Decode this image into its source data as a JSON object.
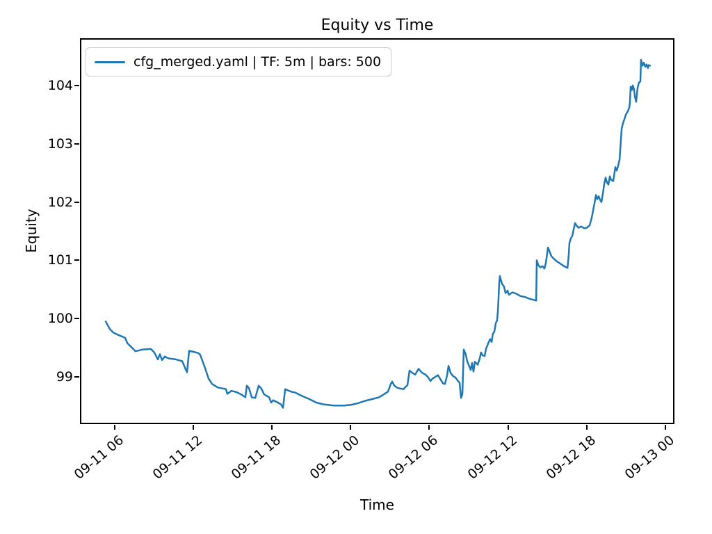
{
  "chart_data": {
    "type": "line",
    "title": "Equity vs Time",
    "xlabel": "Time",
    "ylabel": "Equity",
    "legend": [
      "cfg_merged.yaml | TF: 5m | bars: 500"
    ],
    "legend_position": "upper left",
    "line_color": "#1f77b4",
    "grid": false,
    "x_units": "hours since 09-11 00:00",
    "xlim": [
      3.35,
      48.7
    ],
    "ylim": [
      98.19,
      104.81
    ],
    "x_ticks": [
      {
        "pos": 6,
        "label": "09-11 06"
      },
      {
        "pos": 12,
        "label": "09-11 12"
      },
      {
        "pos": 18,
        "label": "09-11 18"
      },
      {
        "pos": 24,
        "label": "09-12 00"
      },
      {
        "pos": 30,
        "label": "09-12 06"
      },
      {
        "pos": 36,
        "label": "09-12 12"
      },
      {
        "pos": 42,
        "label": "09-12 18"
      },
      {
        "pos": 48,
        "label": "09-13 00"
      }
    ],
    "y_ticks": [
      99,
      100,
      101,
      102,
      103,
      104
    ],
    "x": [
      5.31,
      5.63,
      5.9,
      6.27,
      6.8,
      6.96,
      7.33,
      7.59,
      8.12,
      8.76,
      9.02,
      9.29,
      9.45,
      9.61,
      9.82,
      10.08,
      10.67,
      11.15,
      11.41,
      11.52,
      11.68,
      12.0,
      12.37,
      12.52,
      12.9,
      13.16,
      13.43,
      13.85,
      14.49,
      14.59,
      14.91,
      15.28,
      15.65,
      15.97,
      16.08,
      16.24,
      16.45,
      16.72,
      16.98,
      17.19,
      17.4,
      17.78,
      17.94,
      18.09,
      18.36,
      18.68,
      18.84,
      19.0,
      19.21,
      19.42,
      19.79,
      20.22,
      20.85,
      21.38,
      21.91,
      22.71,
      23.5,
      24.03,
      24.57,
      25.1,
      25.63,
      26.16,
      26.53,
      26.85,
      27.06,
      27.17,
      27.33,
      27.59,
      28.02,
      28.33,
      28.49,
      28.7,
      28.92,
      29.18,
      29.45,
      29.71,
      29.92,
      30.08,
      30.24,
      30.51,
      30.66,
      30.82,
      31.04,
      31.19,
      31.35,
      31.46,
      31.62,
      31.78,
      31.99,
      32.15,
      32.31,
      32.42,
      32.52,
      32.63,
      32.79,
      32.89,
      33.05,
      33.16,
      33.26,
      33.37,
      33.47,
      33.69,
      33.85,
      33.95,
      34.06,
      34.22,
      34.32,
      34.48,
      34.64,
      34.75,
      34.85,
      34.96,
      35.07,
      35.17,
      35.23,
      35.28,
      35.33,
      35.38,
      35.54,
      35.7,
      35.81,
      35.97,
      36.07,
      36.34,
      36.61,
      36.92,
      37.3,
      37.67,
      37.99,
      38.15,
      38.2,
      38.31,
      38.47,
      38.63,
      38.78,
      38.89,
      39.05,
      39.16,
      39.31,
      39.53,
      39.74,
      40.01,
      40.27,
      40.54,
      40.64,
      40.69,
      40.8,
      40.91,
      41.01,
      41.12,
      41.22,
      41.38,
      41.59,
      41.81,
      42.02,
      42.23,
      42.39,
      42.5,
      42.6,
      42.71,
      42.81,
      42.92,
      43.02,
      43.13,
      43.24,
      43.34,
      43.45,
      43.56,
      43.66,
      43.77,
      43.87,
      44.03,
      44.19,
      44.3,
      44.4,
      44.51,
      44.61,
      44.67,
      44.77,
      44.88,
      44.99,
      45.15,
      45.25,
      45.3,
      45.36,
      45.46,
      45.52,
      45.62,
      45.67,
      45.78,
      45.89,
      45.99,
      46.1,
      46.15,
      46.26,
      46.36,
      46.47,
      46.57,
      46.68,
      46.73,
      46.84
    ],
    "y": [
      99.95,
      99.82,
      99.76,
      99.72,
      99.67,
      99.58,
      99.5,
      99.44,
      99.47,
      99.48,
      99.42,
      99.3,
      99.39,
      99.29,
      99.35,
      99.32,
      99.3,
      99.27,
      99.13,
      99.08,
      99.45,
      99.43,
      99.41,
      99.38,
      99.15,
      98.97,
      98.88,
      98.82,
      98.79,
      98.71,
      98.76,
      98.74,
      98.7,
      98.65,
      98.85,
      98.81,
      98.65,
      98.64,
      98.85,
      98.8,
      98.7,
      98.65,
      98.56,
      98.6,
      98.57,
      98.53,
      98.47,
      98.79,
      98.77,
      98.75,
      98.73,
      98.68,
      98.62,
      98.56,
      98.53,
      98.51,
      98.51,
      98.52,
      98.55,
      98.59,
      98.62,
      98.65,
      98.7,
      98.75,
      98.88,
      98.92,
      98.85,
      98.81,
      98.79,
      98.86,
      99.11,
      99.07,
      99.04,
      99.14,
      99.07,
      99.04,
      98.99,
      98.93,
      98.97,
      99.01,
      99.03,
      98.97,
      98.89,
      98.88,
      99.02,
      99.19,
      99.07,
      99.02,
      98.99,
      98.94,
      98.9,
      98.64,
      98.7,
      99.47,
      99.38,
      99.27,
      99.18,
      99.12,
      99.24,
      99.09,
      99.26,
      99.21,
      99.32,
      99.42,
      99.37,
      99.36,
      99.48,
      99.57,
      99.65,
      99.6,
      99.74,
      99.78,
      99.92,
      99.97,
      100.12,
      100.35,
      100.6,
      100.73,
      100.6,
      100.55,
      100.44,
      100.48,
      100.41,
      100.45,
      100.43,
      100.39,
      100.37,
      100.34,
      100.32,
      100.31,
      101.0,
      100.92,
      100.88,
      100.9,
      100.86,
      100.95,
      101.22,
      101.16,
      101.07,
      101.02,
      100.98,
      100.94,
      100.9,
      100.87,
      101.1,
      101.3,
      101.38,
      101.42,
      101.53,
      101.64,
      101.6,
      101.56,
      101.58,
      101.55,
      101.56,
      101.6,
      101.73,
      101.86,
      101.98,
      102.12,
      102.05,
      102.1,
      102.04,
      102.0,
      102.15,
      102.3,
      102.42,
      102.33,
      102.3,
      102.44,
      102.38,
      102.36,
      102.6,
      102.54,
      102.62,
      102.72,
      103.05,
      103.25,
      103.35,
      103.42,
      103.5,
      103.56,
      103.62,
      103.7,
      103.98,
      103.92,
      104.0,
      103.94,
      103.82,
      103.72,
      103.96,
      104.05,
      104.07,
      104.44,
      104.34,
      104.39,
      104.32,
      104.36,
      104.3,
      104.35,
      104.34
    ]
  }
}
